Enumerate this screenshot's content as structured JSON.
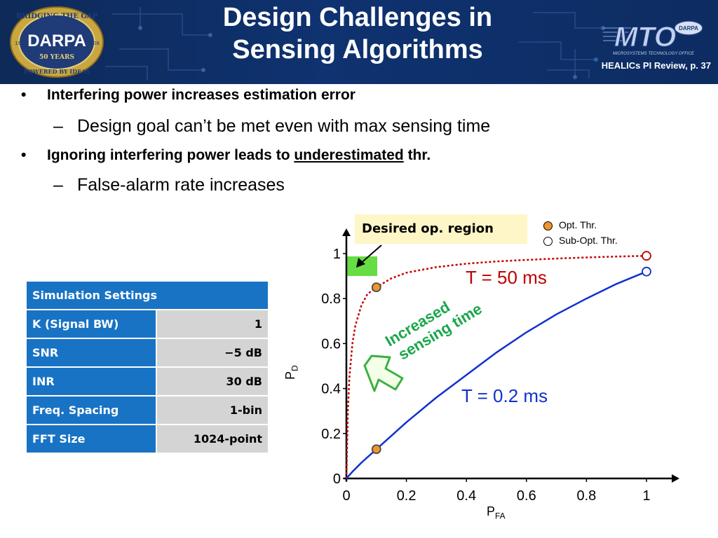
{
  "header": {
    "title_line1": "Design Challenges in",
    "title_line2": "Sensing Algorithms",
    "page_tag": "HEALICs PI Review, p. 37",
    "left_logo_text": [
      "BRIDGING THE GAP",
      "DARPA",
      "50 YEARS",
      "POWERED BY IDEAS",
      "1958",
      "2008"
    ],
    "right_logo_text": [
      "MTO",
      "DARPA",
      "MICROSYSTEMS TECHNOLOGY OFFICE"
    ]
  },
  "bullets": [
    {
      "level": 1,
      "marker": "•",
      "text": "Interfering power increases estimation error"
    },
    {
      "level": 2,
      "marker": "–",
      "text": "Design goal can’t be met even with max sensing time"
    },
    {
      "level": 1,
      "marker": "•",
      "text_before": "Ignoring interfering power leads to ",
      "text_underlined": "underestimated",
      "text_after": " thr."
    },
    {
      "level": 2,
      "marker": "–",
      "text": "False-alarm rate increases"
    }
  ],
  "table": {
    "header": "Simulation Settings",
    "rows": [
      {
        "key": "K (Signal BW)",
        "value": "1"
      },
      {
        "key": "SNR",
        "value": "−5 dB"
      },
      {
        "key": "INR",
        "value": "30 dB"
      },
      {
        "key": "Freq. Spacing",
        "value": "1-bin"
      },
      {
        "key": "FFT Size",
        "value": "1024-point"
      }
    ]
  },
  "chart_data": {
    "type": "line",
    "xlabel": "P",
    "xlabel_sub": "FA",
    "ylabel": "P",
    "ylabel_sub": "D",
    "xlim": [
      0,
      1
    ],
    "ylim": [
      0,
      1
    ],
    "x_ticks": [
      0,
      0.2,
      0.4,
      0.6,
      0.8,
      1
    ],
    "x_tick_labels": [
      "0",
      "0.2",
      "0.4",
      "0.6",
      "0.8",
      "1"
    ],
    "y_ticks": [
      0,
      0.2,
      0.4,
      0.6,
      0.8,
      1
    ],
    "y_tick_labels": [
      "0",
      "0.2",
      "0.4",
      "0.6",
      "0.8",
      "1"
    ],
    "grid": false,
    "series": [
      {
        "name": "T = 50 ms",
        "color": "#c00000",
        "style": "dotted",
        "x": [
          0,
          0.005,
          0.01,
          0.02,
          0.03,
          0.05,
          0.07,
          0.1,
          0.15,
          0.2,
          0.3,
          0.4,
          0.5,
          0.6,
          0.7,
          0.8,
          0.9,
          1.0
        ],
        "y": [
          0,
          0.3,
          0.45,
          0.6,
          0.68,
          0.77,
          0.82,
          0.85,
          0.89,
          0.915,
          0.94,
          0.955,
          0.965,
          0.972,
          0.978,
          0.983,
          0.987,
          0.99
        ]
      },
      {
        "name": "T = 0.2 ms",
        "color": "#1030d0",
        "style": "solid",
        "x": [
          0,
          0.02,
          0.05,
          0.1,
          0.2,
          0.3,
          0.4,
          0.5,
          0.6,
          0.7,
          0.8,
          0.9,
          1.0
        ],
        "y": [
          0,
          0.03,
          0.07,
          0.13,
          0.25,
          0.36,
          0.46,
          0.56,
          0.65,
          0.73,
          0.8,
          0.865,
          0.92
        ]
      }
    ],
    "markers": [
      {
        "type": "Opt. Thr.",
        "x": 0.1,
        "y": 0.85,
        "fill": "#f0962a"
      },
      {
        "type": "Opt. Thr.",
        "x": 0.1,
        "y": 0.13,
        "fill": "#f0962a"
      },
      {
        "type": "Sub-Opt. Thr.",
        "x": 1.0,
        "y": 0.99,
        "stroke": "#c00000"
      },
      {
        "type": "Sub-Opt. Thr.",
        "x": 1.0,
        "y": 0.92,
        "stroke": "#1030d0"
      }
    ],
    "legend": {
      "position": "top-right",
      "entries": [
        {
          "label": "Opt. Thr.",
          "fill": "#f0962a"
        },
        {
          "label": "Sub-Opt. Thr.",
          "fill": "#ffffff"
        }
      ]
    },
    "desired_region": {
      "label": "Desired op. region",
      "color": "#66dd44"
    },
    "annotation": {
      "line1": "Increased",
      "line2": "sensing time",
      "color": "#1aa64a"
    }
  }
}
